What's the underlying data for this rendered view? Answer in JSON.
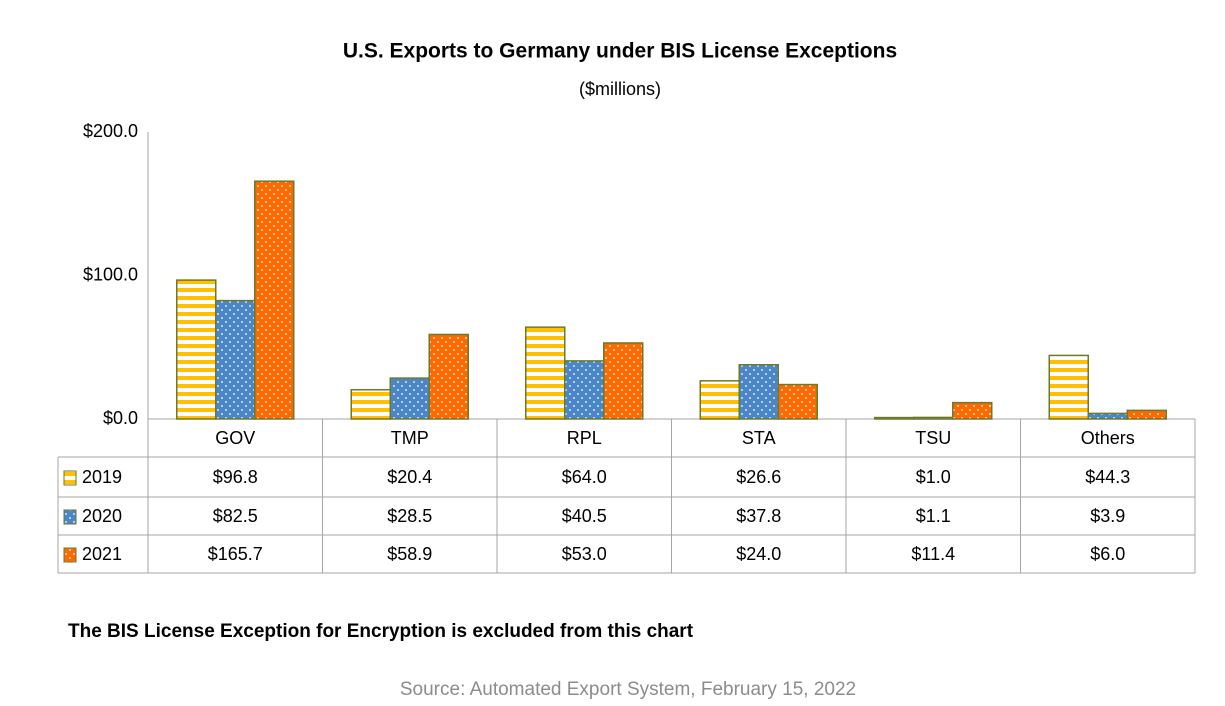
{
  "chart_data": {
    "type": "bar",
    "title": "U.S. Exports to Germany under BIS License Exceptions",
    "subtitle": "($millions)",
    "categories": [
      "GOV",
      "TMP",
      "RPL",
      "STA",
      "TSU",
      "Others"
    ],
    "series": [
      {
        "name": "2019",
        "color": "#ffc000",
        "pattern": "stripes",
        "values": [
          96.8,
          20.4,
          64.0,
          26.6,
          1.0,
          44.3
        ],
        "value_labels": [
          "$96.8",
          "$20.4",
          "$64.0",
          "$26.6",
          "$1.0",
          "$44.3"
        ]
      },
      {
        "name": "2020",
        "color": "#4a86c8",
        "pattern": "dots",
        "values": [
          82.5,
          28.5,
          40.5,
          37.8,
          1.1,
          3.9
        ],
        "value_labels": [
          "$82.5",
          "$28.5",
          "$40.5",
          "$37.8",
          "$1.1",
          "$3.9"
        ]
      },
      {
        "name": "2021",
        "color": "#ff6a00",
        "pattern": "dots",
        "values": [
          165.7,
          58.9,
          53.0,
          24.0,
          11.4,
          6.0
        ],
        "value_labels": [
          "$165.7",
          "$58.9",
          "$53.0",
          "$24.0",
          "$11.4",
          "$6.0"
        ]
      }
    ],
    "ylim": [
      0,
      200
    ],
    "yticks": [
      {
        "value": 0,
        "label": "$0.0"
      },
      {
        "value": 100,
        "label": "$100.0"
      },
      {
        "value": 200,
        "label": "$200.0"
      }
    ],
    "note": "The BIS License Exception for Encryption is excluded from this chart",
    "source": "Source: Automated Export System, February 15, 2022"
  }
}
